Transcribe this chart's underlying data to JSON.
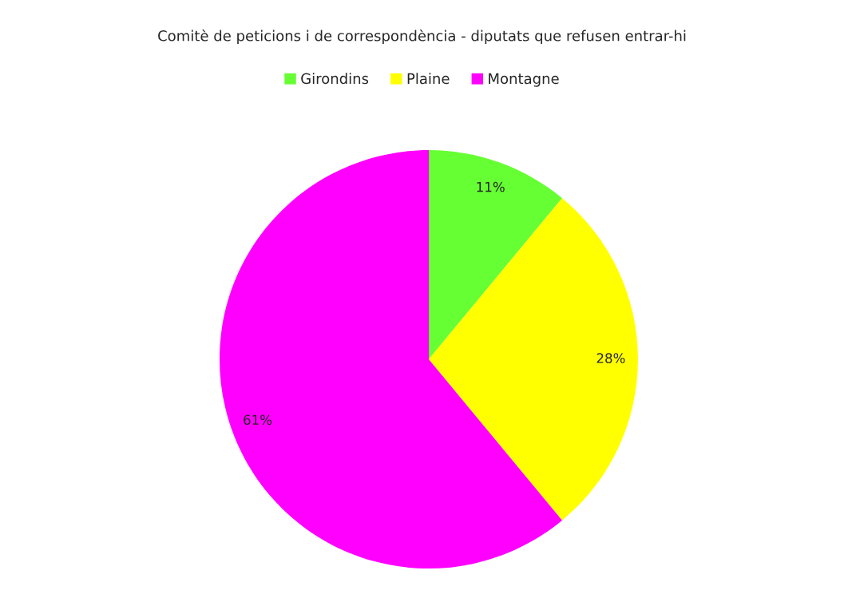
{
  "chart_data": {
    "type": "pie",
    "title": "Comitè de peticions i de correspondència - diputats que refusen entrar-hi",
    "categories": [
      "Girondins",
      "Plaine",
      "Montagne"
    ],
    "values": [
      11,
      28,
      61
    ],
    "colors": [
      "#66ff33",
      "#ffff00",
      "#ff00ff"
    ],
    "value_labels": [
      "11%",
      "28%",
      "61%"
    ],
    "legend": "top"
  }
}
